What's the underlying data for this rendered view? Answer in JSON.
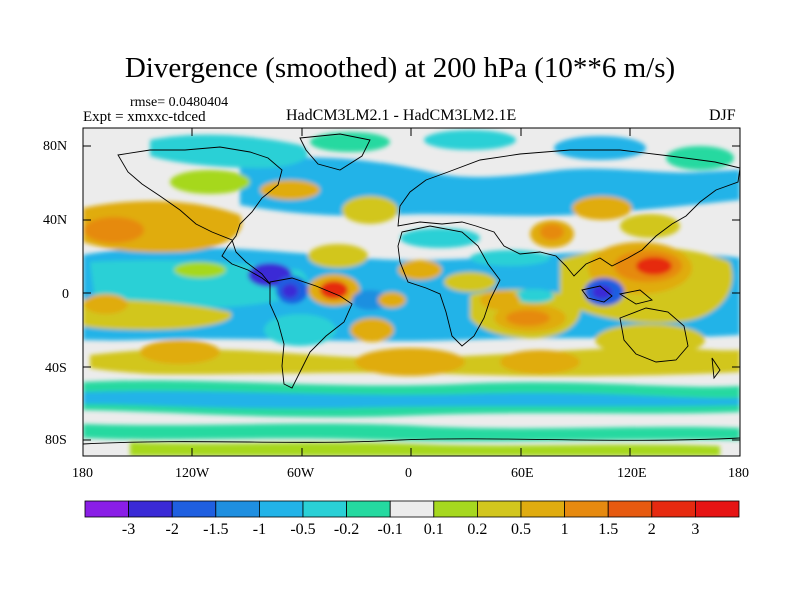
{
  "title": "Divergence (smoothed) at 200 hPa (10**6 m/s)",
  "rmse_text": "rmse= 0.0480404",
  "expt_text": "Expt = xmxxc-tdced",
  "center_label": "HadCM3LM2.1 - HadCM3LM2.1E",
  "season": "DJF",
  "lat_labels": [
    "80N",
    "40N",
    "0",
    "40S",
    "80S"
  ],
  "lon_labels": [
    "180",
    "120W",
    "60W",
    "0",
    "60E",
    "120E",
    "180"
  ],
  "colorbar": {
    "labels": [
      "-3",
      "-2",
      "-1.5",
      "-1",
      "-0.5",
      "-0.2",
      "-0.1",
      "0.1",
      "0.2",
      "0.5",
      "1",
      "1.5",
      "2",
      "3"
    ],
    "colors": [
      "#8a1ee6",
      "#3a2ad6",
      "#1f5fe0",
      "#1f8fe0",
      "#22b3e8",
      "#2ad0d6",
      "#25d9a0",
      "#ececec",
      "#a6d81f",
      "#d2c61e",
      "#e0ac10",
      "#e68a10",
      "#e65a10",
      "#e62a10",
      "#e61414"
    ]
  },
  "map_colors": {
    "background": "#ececec",
    "teal": "#2ad0d6",
    "cyan": "#22b3e8",
    "green": "#25d9a0",
    "lime": "#a6d81f",
    "yellow": "#d2c61e",
    "orange": "#e0ac10",
    "dark_orange": "#e68a10",
    "red": "#e62a10",
    "blue": "#1f8fe0",
    "deep_blue": "#3a2ad6"
  }
}
